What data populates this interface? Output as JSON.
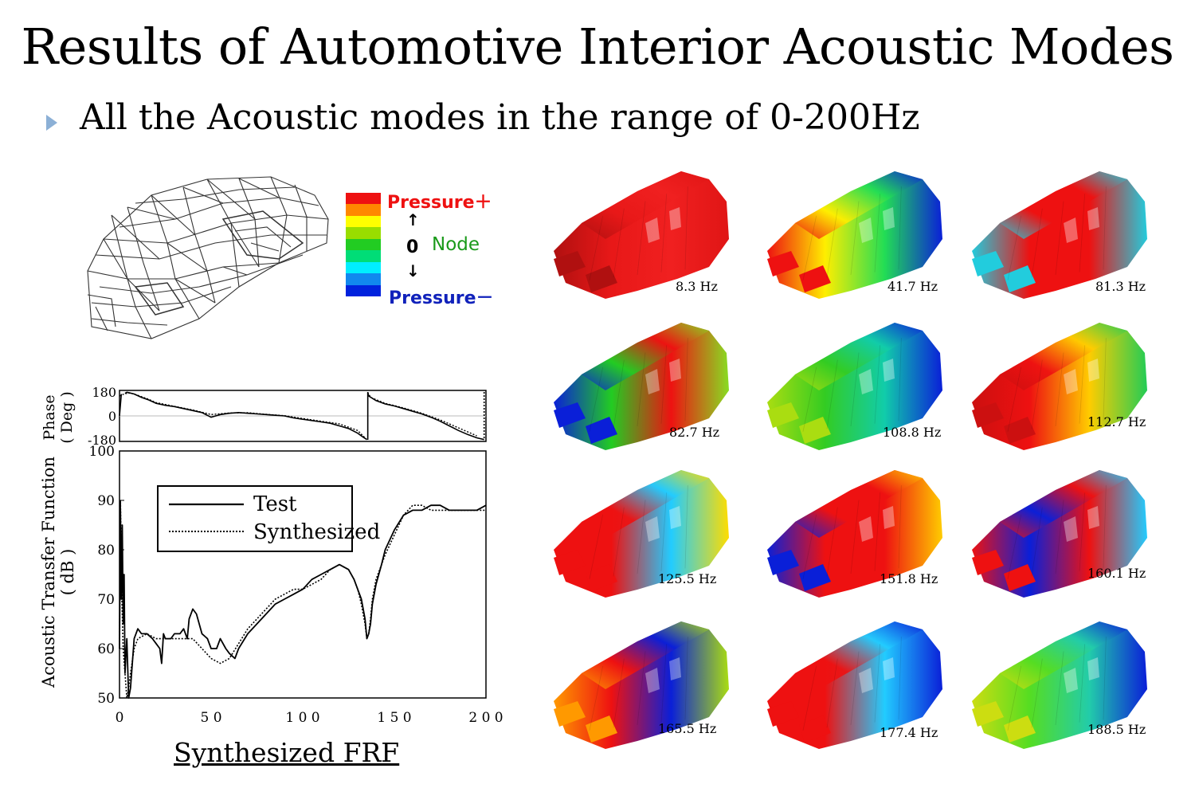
{
  "slide": {
    "title": "Results of Automotive Interior Acoustic Modes",
    "bullet": "All the Acoustic modes in the range of 0-200Hz"
  },
  "legend": {
    "pos_label": "Pressure＋",
    "node_zero": "0",
    "node_label": "Node",
    "neg_label": "Pressure－",
    "colors": [
      "#ee1111",
      "#ff8800",
      "#ffff00",
      "#99dd00",
      "#22cc22",
      "#00dd77",
      "#00eeff",
      "#1188ee",
      "#0022dd"
    ]
  },
  "chart_data": [
    {
      "type": "line",
      "ylabel_line1": "Phase",
      "ylabel_line2": "( Deg )",
      "ytick_labels": [
        "180",
        "0",
        "-180"
      ],
      "ylim": [
        -180,
        180
      ],
      "xlim": [
        0,
        200
      ],
      "series": [
        {
          "name": "Test",
          "x": [
            0,
            1,
            2,
            3,
            4,
            5,
            8,
            12,
            16,
            20,
            25,
            30,
            35,
            40,
            45,
            50,
            55,
            60,
            65,
            70,
            75,
            80,
            85,
            90,
            95,
            100,
            105,
            110,
            115,
            120,
            125,
            130,
            133,
            135,
            135.5,
            136,
            140,
            145,
            150,
            155,
            160,
            165,
            170,
            175,
            180,
            185,
            190,
            195,
            199,
            200
          ],
          "values": [
            0,
            165,
            -175,
            170,
            178,
            175,
            165,
            140,
            120,
            95,
            80,
            70,
            55,
            40,
            25,
            -10,
            10,
            20,
            25,
            20,
            15,
            10,
            5,
            0,
            -15,
            -25,
            -35,
            -45,
            -55,
            -75,
            -95,
            -130,
            -160,
            -178,
            175,
            150,
            115,
            90,
            75,
            55,
            35,
            15,
            -10,
            -40,
            -75,
            -110,
            -140,
            -165,
            -178,
            170
          ]
        },
        {
          "name": "Synthesized",
          "x": [
            0,
            3,
            6,
            10,
            15,
            20,
            30,
            40,
            50,
            60,
            70,
            80,
            90,
            100,
            110,
            120,
            130,
            134,
            135,
            135.5,
            137,
            145,
            155,
            165,
            175,
            185,
            195,
            200
          ],
          "values": [
            150,
            168,
            172,
            155,
            130,
            100,
            72,
            45,
            10,
            22,
            24,
            12,
            2,
            -20,
            -40,
            -60,
            -110,
            -165,
            -178,
            178,
            140,
            95,
            60,
            20,
            -30,
            -90,
            -150,
            175
          ]
        }
      ]
    },
    {
      "type": "line",
      "ylabel_line1": "Acoustic Transfer Function",
      "ylabel_line2": "( dB )",
      "xlim": [
        0,
        200
      ],
      "ylim": [
        50,
        100
      ],
      "xticks": [
        0,
        50,
        100,
        150,
        200
      ],
      "xtick_labels": [
        "0",
        "5 0",
        "1 0 0",
        "1 5 0",
        "2 0 0"
      ],
      "yticks": [
        50,
        60,
        70,
        80,
        90,
        100
      ],
      "ytick_labels": [
        "50",
        "60",
        "70",
        "80",
        "90",
        "100"
      ],
      "legend_position": "top-left",
      "series": [
        {
          "name": "Test",
          "x": [
            0,
            0.5,
            1,
            1.5,
            2,
            2.5,
            3,
            4,
            5,
            6,
            8,
            10,
            12,
            15,
            18,
            20,
            22,
            23,
            24,
            25,
            28,
            30,
            33,
            35,
            37,
            38,
            40,
            42,
            45,
            48,
            50,
            53,
            55,
            58,
            60,
            63,
            65,
            70,
            75,
            80,
            85,
            90,
            95,
            100,
            105,
            110,
            115,
            120,
            125,
            128,
            130,
            132,
            134,
            135,
            136,
            137,
            138,
            140,
            143,
            145,
            150,
            155,
            160,
            165,
            170,
            175,
            180,
            185,
            190,
            195,
            200
          ],
          "values": [
            60,
            88,
            70,
            85,
            65,
            75,
            55,
            62,
            50,
            52,
            62,
            64,
            63,
            63,
            62,
            61,
            60,
            57,
            63,
            62,
            62,
            63,
            63,
            64,
            62,
            66,
            68,
            67,
            63,
            62,
            60,
            60,
            62,
            60,
            59,
            58,
            60,
            63,
            65,
            67,
            69,
            70,
            71,
            72,
            74,
            75,
            76,
            77,
            76,
            74,
            72,
            70,
            66,
            62,
            63,
            65,
            69,
            73,
            77,
            80,
            84,
            87,
            88,
            88,
            89,
            89,
            88,
            88,
            88,
            88,
            89
          ]
        },
        {
          "name": "Synthesized",
          "x": [
            0,
            0.5,
            1,
            2,
            3,
            4,
            5,
            6,
            8,
            10,
            15,
            20,
            25,
            30,
            35,
            40,
            45,
            50,
            55,
            60,
            65,
            70,
            75,
            80,
            85,
            90,
            95,
            100,
            105,
            110,
            115,
            120,
            125,
            128,
            130,
            132,
            134,
            135,
            136,
            137,
            138,
            140,
            143,
            145,
            150,
            155,
            160,
            165,
            170,
            175,
            180,
            185,
            190,
            195,
            200
          ],
          "values": [
            60,
            90,
            75,
            60,
            55,
            50,
            52,
            55,
            60,
            62,
            63,
            62,
            62,
            62,
            62,
            62,
            60,
            58,
            57,
            58,
            61,
            64,
            66,
            68,
            70,
            71,
            72,
            72,
            73,
            74,
            76,
            77,
            76,
            74,
            72,
            69,
            65,
            62,
            63,
            66,
            70,
            74,
            77,
            79,
            83,
            87,
            89,
            89,
            88,
            88,
            88,
            88,
            88,
            88,
            88
          ]
        }
      ]
    }
  ],
  "frf_caption": "Synthesized FRF",
  "modes": [
    {
      "freq": "8.3 Hz",
      "pattern": "uniform"
    },
    {
      "freq": "41.7 Hz",
      "pattern": "rear-front"
    },
    {
      "freq": "81.3 Hz",
      "pattern": "mid-band"
    },
    {
      "freq": "82.7 Hz",
      "pattern": "side-split"
    },
    {
      "freq": "108.8 Hz",
      "pattern": "green-blue"
    },
    {
      "freq": "112.7 Hz",
      "pattern": "front-red"
    },
    {
      "freq": "125.5 Hz",
      "pattern": "rear-red"
    },
    {
      "freq": "151.8 Hz",
      "pattern": "diag"
    },
    {
      "freq": "160.1 Hz",
      "pattern": "top-blue"
    },
    {
      "freq": "165.5 Hz",
      "pattern": "spotted"
    },
    {
      "freq": "177.4 Hz",
      "pattern": "front-red2"
    },
    {
      "freq": "188.5 Hz",
      "pattern": "yellow-blue"
    }
  ]
}
